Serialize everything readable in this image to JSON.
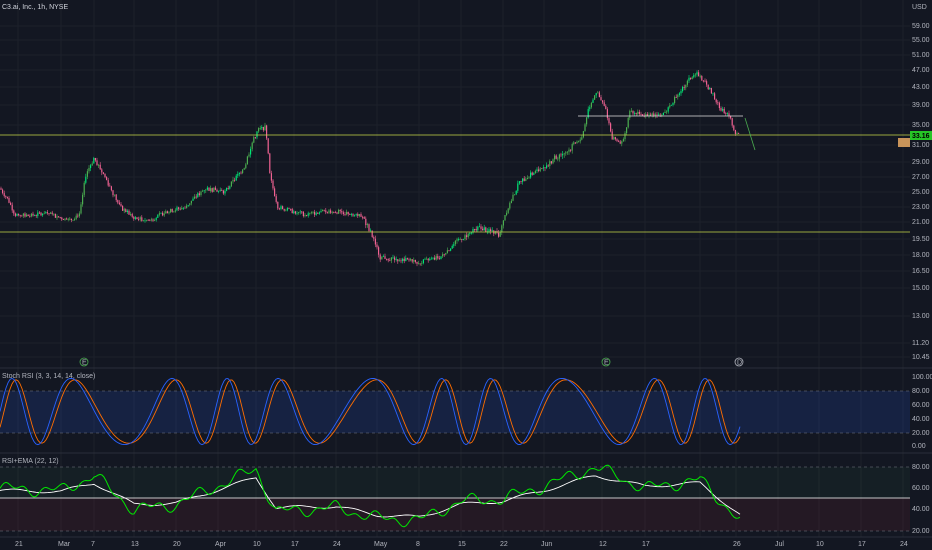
{
  "header": {
    "symbol_title": "C3.ai, Inc., 1h, NYSE",
    "currency": "USD"
  },
  "colors": {
    "background": "#131722",
    "grid": "#1e222d",
    "up": "#4caf50",
    "up_bright": "#00e676",
    "down": "#f06292",
    "support_line": "#c8d84a",
    "stoch_k": "#2962ff",
    "stoch_d": "#ff6d00",
    "rsi": "#00e600",
    "ema": "#ffffff",
    "price_tag": "#26c626",
    "orange_tag": "#c8945a"
  },
  "price_scale": {
    "ticks": [
      "59.00",
      "55.00",
      "51.00",
      "47.00",
      "43.00",
      "39.00",
      "35.00",
      "31.00",
      "29.00",
      "27.00",
      "25.00",
      "23.00",
      "21.00",
      "19.50",
      "18.00",
      "16.50",
      "15.00",
      "13.00",
      "11.20",
      "10.45"
    ],
    "current_price": "33.16"
  },
  "time_axis": {
    "labels": [
      "21",
      "Mar",
      "7",
      "13",
      "20",
      "Apr",
      "10",
      "17",
      "24",
      "May",
      "8",
      "15",
      "22",
      "Jun",
      "12",
      "17",
      "26",
      "Jul",
      "10",
      "17",
      "24"
    ]
  },
  "events": [
    "E",
    "E",
    "D"
  ],
  "stoch_rsi": {
    "label": "Stoch RSI (3, 3, 14, 14, close)",
    "ticks": [
      "100.00",
      "80.00",
      "60.00",
      "40.00",
      "20.00",
      "0.00"
    ]
  },
  "rsi_ema": {
    "label": "RSI+EMA (22, 12)",
    "ticks": [
      "80.00",
      "60.00",
      "40.00",
      "20.00"
    ]
  },
  "chart_data": [
    {
      "type": "candlestick",
      "title": "C3.ai, Inc., 1h, NYSE",
      "unit": "USD",
      "x": [
        "Feb 21",
        "Mar 1",
        "Mar 7",
        "Mar 13",
        "Mar 20",
        "Apr 1",
        "Apr 10",
        "Apr 17",
        "Apr 24",
        "May 1",
        "May 8",
        "May 15",
        "May 22",
        "Jun 1",
        "Jun 12",
        "Jun 17",
        "Jun 26"
      ],
      "close": [
        25.0,
        21.6,
        29.5,
        22.0,
        21.5,
        33.5,
        22.2,
        21.0,
        17.5,
        17.4,
        20.5,
        21.2,
        28.5,
        41.0,
        40.0,
        47.0,
        33.16
      ],
      "support_lines": [
        33.5,
        19.8
      ],
      "resistance_segment": 37.5,
      "ylim": [
        10.45,
        59.0
      ]
    },
    {
      "type": "line",
      "title": "Stoch RSI (3, 3, 14, 14, close)",
      "bands": [
        20,
        80
      ],
      "ylim": [
        0,
        100
      ]
    },
    {
      "type": "line",
      "title": "RSI+EMA (22, 12)",
      "series": [
        {
          "name": "RSI",
          "values": [
            60,
            58,
            72,
            40,
            45,
            78,
            38,
            42,
            32,
            30,
            48,
            50,
            62,
            80,
            60,
            68,
            30
          ]
        },
        {
          "name": "EMA",
          "values": [
            58,
            57,
            65,
            45,
            46,
            70,
            42,
            43,
            35,
            33,
            45,
            48,
            58,
            72,
            62,
            65,
            35
          ]
        }
      ],
      "levels": [
        80,
        60,
        40,
        20
      ],
      "ylim": [
        20,
        85
      ]
    }
  ]
}
